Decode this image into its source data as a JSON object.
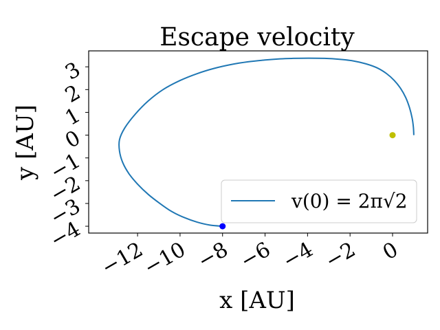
{
  "chart_data": {
    "type": "line",
    "title": "Escape velocity",
    "xlabel": "x [AU]",
    "ylabel": "y [AU]",
    "xlim": [
      -14.3,
      1.65
    ],
    "ylim": [
      -4.3,
      3.7
    ],
    "xticks": [
      -12,
      -10,
      -8,
      -6,
      -4,
      -2,
      0
    ],
    "xtick_labels": [
      "−12",
      "−10",
      "−8",
      "−6",
      "−4",
      "−2",
      "0"
    ],
    "yticks": [
      -4,
      -3,
      -2,
      -1,
      0,
      1,
      2,
      3
    ],
    "ytick_labels": [
      "−4",
      "−3",
      "−2",
      "−1",
      "0",
      "1",
      "2",
      "3"
    ],
    "grid": false,
    "legend_position": "lower right",
    "series": [
      {
        "name": "v(0) = 2π√2",
        "color": "#1f77b4",
        "x": [
          1.0,
          0.98,
          0.92,
          0.8,
          0.62,
          0.38,
          0.08,
          -0.28,
          -0.72,
          -1.25,
          -1.85,
          -2.5,
          -3.2,
          -3.95,
          -4.7,
          -5.3,
          -6.0,
          -6.8,
          -7.6,
          -8.4,
          -9.2,
          -10.0,
          -10.8,
          -11.5,
          -12.1,
          -12.6,
          -12.85,
          -12.85,
          -12.7,
          -12.4,
          -12.0,
          -11.5,
          -10.95,
          -10.4,
          -9.8,
          -9.2,
          -8.6,
          -8.0
        ],
        "y": [
          0.0,
          0.35,
          0.75,
          1.2,
          1.65,
          2.05,
          2.4,
          2.7,
          2.95,
          3.13,
          3.26,
          3.33,
          3.37,
          3.38,
          3.37,
          3.35,
          3.3,
          3.22,
          3.1,
          2.93,
          2.7,
          2.4,
          2.0,
          1.5,
          0.93,
          0.32,
          -0.2,
          -0.7,
          -1.2,
          -1.7,
          -2.15,
          -2.6,
          -3.0,
          -3.35,
          -3.62,
          -3.82,
          -3.95,
          -4.0
        ]
      }
    ],
    "markers": [
      {
        "name": "start point",
        "x": -8.0,
        "y": -4.0,
        "color": "#0000ff"
      },
      {
        "name": "sun",
        "x": 0.0,
        "y": 0.0,
        "color": "#bfbf00"
      }
    ]
  }
}
